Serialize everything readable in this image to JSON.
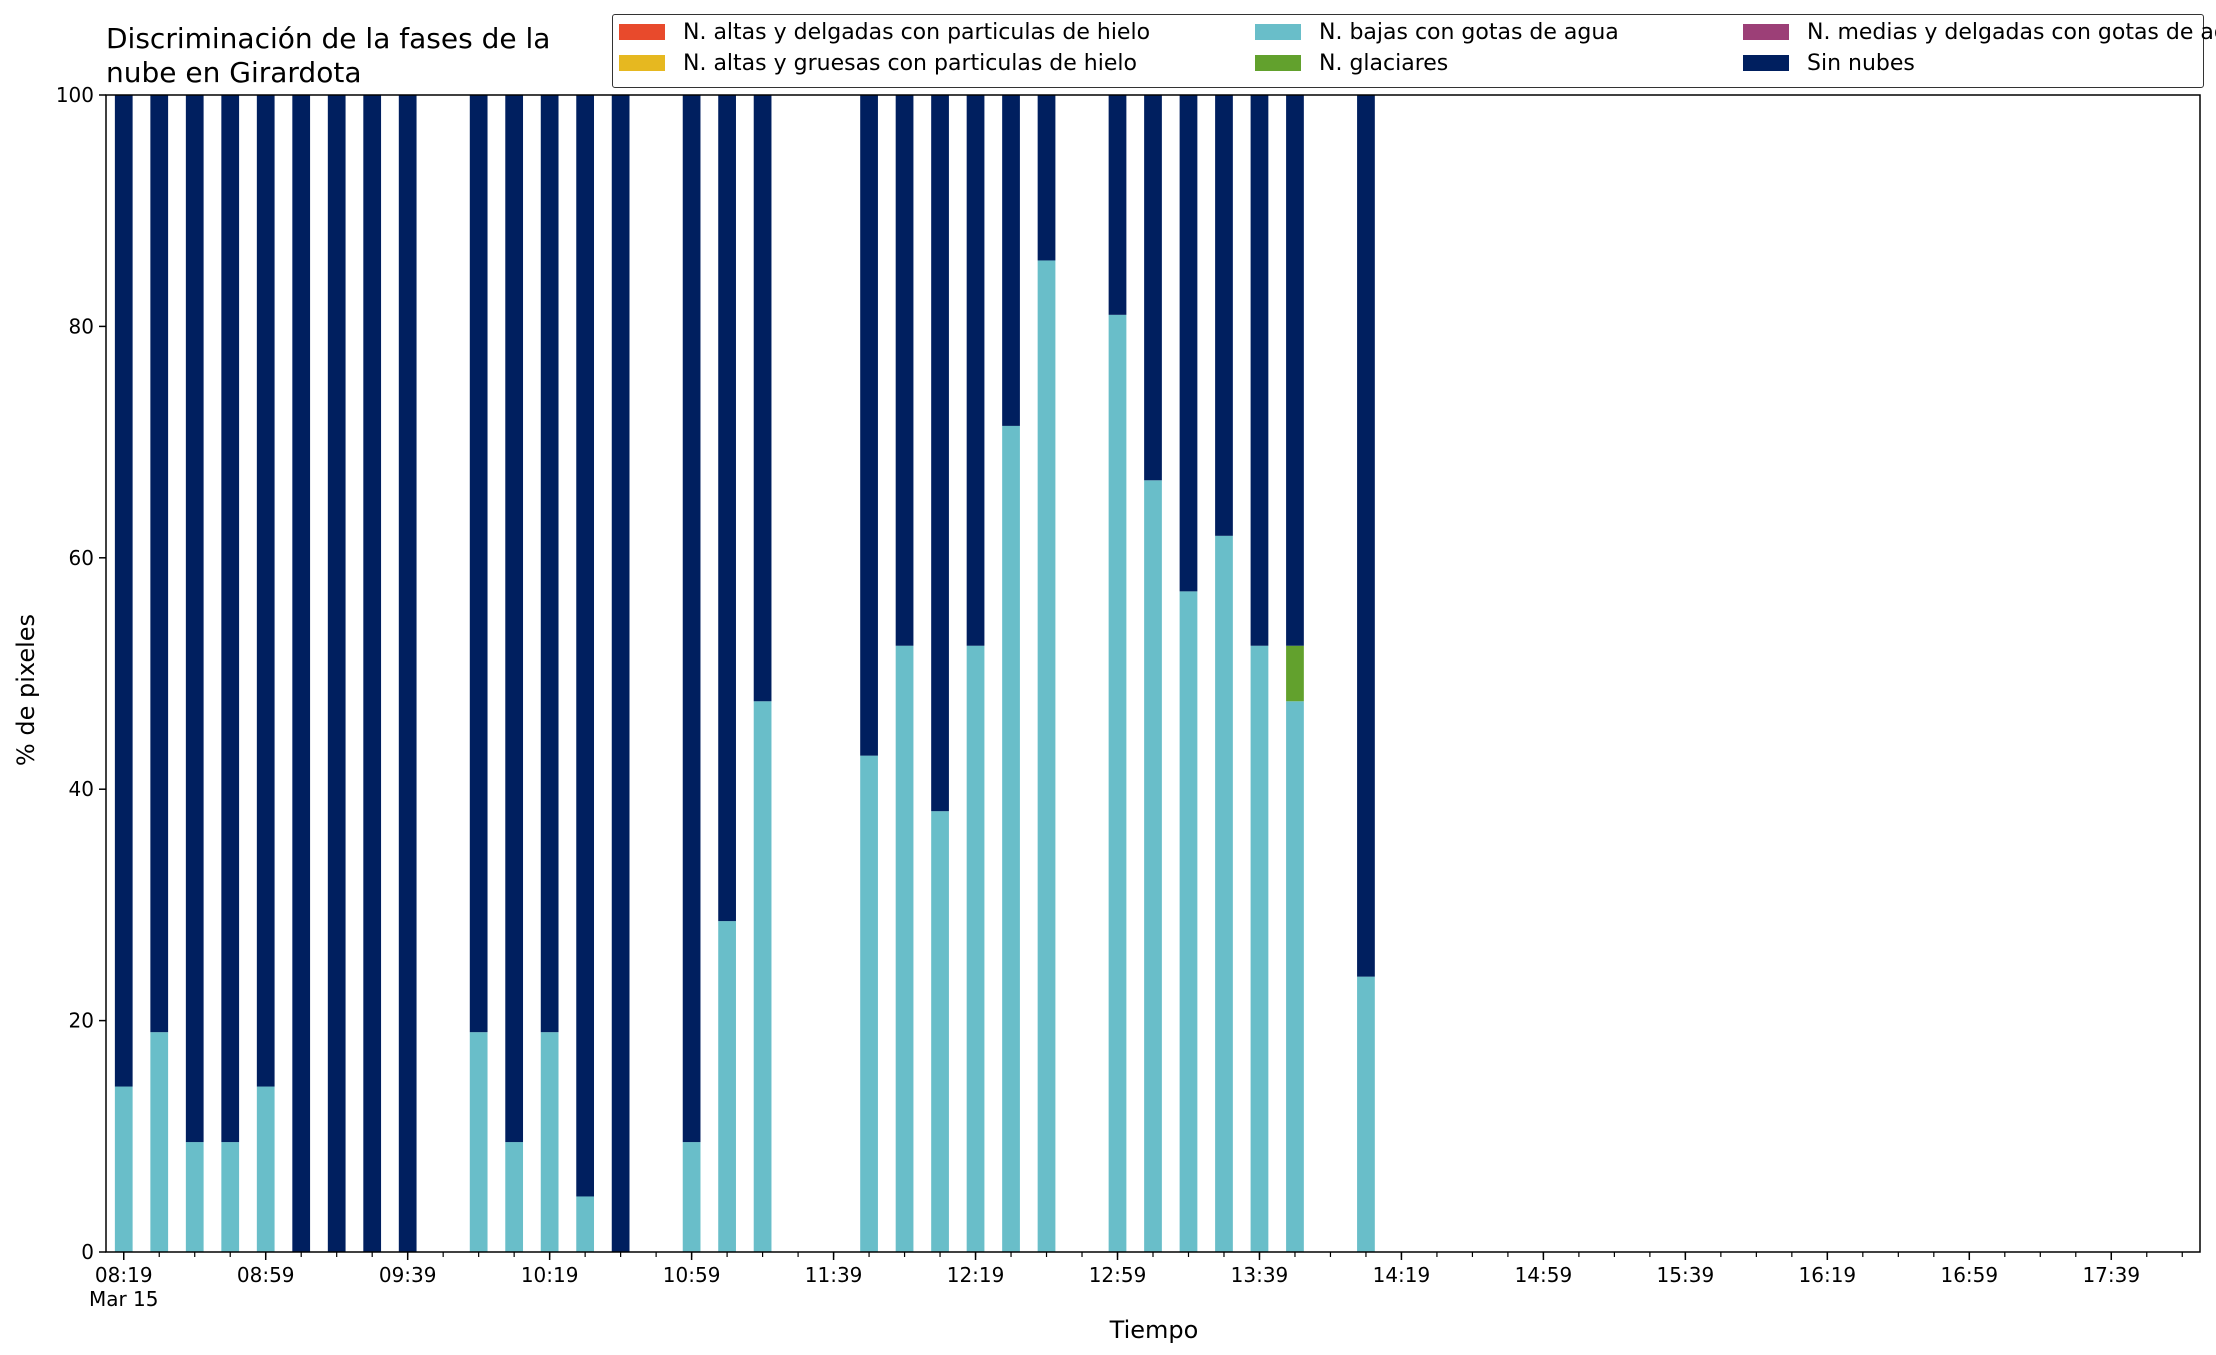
{
  "chart_data": {
    "type": "bar",
    "stacked": true,
    "title": "Discriminación de la fases de la\nnube en Girardota",
    "xlabel": "Tiempo",
    "ylabel": "% de pixeles",
    "ylim": [
      0,
      100
    ],
    "yticks": [
      0,
      20,
      40,
      60,
      80,
      100
    ],
    "xlim": [
      "08:14",
      "18:04"
    ],
    "xticks_major": [
      "08:19",
      "08:59",
      "09:39",
      "10:19",
      "10:59",
      "11:39",
      "12:19",
      "12:59",
      "13:39",
      "14:19",
      "14:59",
      "15:39",
      "16:19",
      "16:59",
      "17:39"
    ],
    "xtick_date_label": "Mar 15",
    "minor_tick_interval_minutes": 10,
    "bar_interval_minutes": 10,
    "legend_position": "top",
    "grid": false,
    "categories": [
      "08:19",
      "08:29",
      "08:39",
      "08:49",
      "08:59",
      "09:09",
      "09:19",
      "09:29",
      "09:39",
      "09:49",
      "09:59",
      "10:09",
      "10:19",
      "10:29",
      "10:39",
      "10:49",
      "10:59",
      "11:09",
      "11:19",
      "11:29",
      "11:39",
      "11:49",
      "11:59",
      "12:09",
      "12:19",
      "12:29",
      "12:39",
      "12:49",
      "12:59",
      "13:09",
      "13:19",
      "13:29",
      "13:39",
      "13:49",
      "13:59",
      "14:09"
    ],
    "series": [
      {
        "name": "N. altas y delgadas con particulas de hielo",
        "color": "#e84a2c",
        "values": [
          0,
          0,
          0,
          0,
          0,
          0,
          0,
          0,
          0,
          null,
          0,
          0,
          0,
          0,
          0,
          null,
          0,
          0,
          0,
          null,
          null,
          0,
          0,
          0,
          0,
          0,
          0,
          null,
          0,
          0,
          0,
          0,
          0,
          0,
          null,
          0
        ]
      },
      {
        "name": "N. altas y gruesas con particulas de hielo",
        "color": "#e6b820",
        "values": [
          0,
          0,
          0,
          0,
          0,
          0,
          0,
          0,
          0,
          null,
          0,
          0,
          0,
          0,
          0,
          null,
          0,
          0,
          0,
          null,
          null,
          0,
          0,
          0,
          0,
          0,
          0,
          null,
          0,
          0,
          0,
          0,
          0,
          0,
          null,
          0
        ]
      },
      {
        "name": "N. bajas con gotas de agua",
        "color": "#69bec9",
        "values": [
          14.3,
          19.0,
          9.5,
          9.5,
          14.3,
          0,
          0,
          0,
          0,
          null,
          19.0,
          9.5,
          19.0,
          4.8,
          0,
          null,
          9.5,
          28.6,
          47.6,
          null,
          null,
          42.9,
          52.4,
          38.1,
          52.4,
          71.4,
          85.7,
          null,
          81.0,
          66.7,
          57.1,
          61.9,
          52.4,
          47.6,
          null,
          23.8
        ]
      },
      {
        "name": "N. glaciares",
        "color": "#62a12d",
        "values": [
          0,
          0,
          0,
          0,
          0,
          0,
          0,
          0,
          0,
          null,
          0,
          0,
          0,
          0,
          0,
          null,
          0,
          0,
          0,
          null,
          null,
          0,
          0,
          0,
          0,
          0,
          0,
          null,
          0,
          0,
          0,
          0,
          0,
          4.8,
          null,
          0
        ]
      },
      {
        "name": "N. medias y delgadas con gotas de agua",
        "color": "#9c3f77",
        "values": [
          0,
          0,
          0,
          0,
          0,
          0,
          0,
          0,
          0,
          null,
          0,
          0,
          0,
          0,
          0,
          null,
          0,
          0,
          0,
          null,
          null,
          0,
          0,
          0,
          0,
          0,
          0,
          null,
          0,
          0,
          0,
          0,
          0,
          0,
          null,
          0
        ]
      },
      {
        "name": "Sin nubes",
        "color": "#001f5f",
        "values": [
          85.7,
          81.0,
          90.5,
          90.5,
          85.7,
          100,
          100,
          100,
          100,
          null,
          81.0,
          90.5,
          81.0,
          95.2,
          100,
          null,
          90.5,
          71.4,
          52.4,
          null,
          null,
          57.1,
          47.6,
          61.9,
          47.6,
          28.6,
          14.3,
          null,
          19.0,
          33.3,
          42.9,
          38.1,
          47.6,
          47.6,
          null,
          76.2
        ]
      }
    ],
    "legend_order": [
      0,
      1,
      2,
      3,
      4,
      5
    ]
  }
}
